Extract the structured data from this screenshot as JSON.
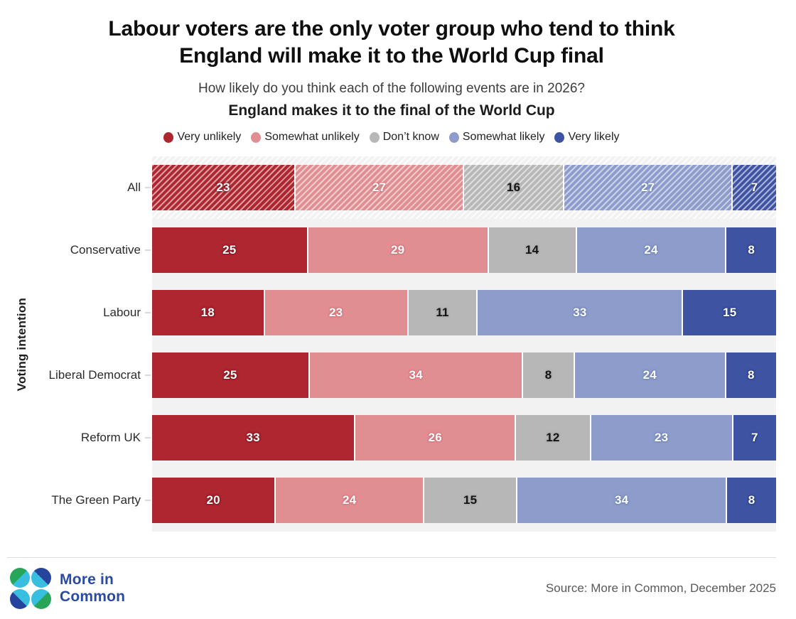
{
  "header": {
    "title_line1": "Labour voters are the only voter group who tend to think",
    "title_line2": "England will make it to the World Cup final",
    "subtitle": "How likely do you think each of the following events are in 2026?",
    "question": "England makes it to the final of the World Cup"
  },
  "chart_data": {
    "type": "bar",
    "orientation": "horizontal",
    "stacked": true,
    "unit": "percent",
    "xlim": [
      0,
      100
    ],
    "ylabel": "Voting intention",
    "legend_position": "top",
    "hatched_category": "All",
    "plot_background": "#f2f2f2",
    "categories": [
      "All",
      "Conservative",
      "Labour",
      "Liberal Democrat",
      "Reform UK",
      "The Green Party"
    ],
    "series": [
      {
        "name": "Very unlikely",
        "color": "#ae2630",
        "label_color": "#ffffff",
        "label_halo": "#7e151e",
        "values": [
          23,
          25,
          18,
          25,
          33,
          20
        ]
      },
      {
        "name": "Somewhat unlikely",
        "color": "#e18e93",
        "label_color": "#ffffff",
        "label_halo": "#cf6d74",
        "values": [
          27,
          29,
          23,
          34,
          26,
          24
        ]
      },
      {
        "name": "Don’t know",
        "color": "#b8b7b7",
        "label_color": "#141414",
        "label_halo": "#a5a4a4",
        "values": [
          16,
          14,
          11,
          8,
          12,
          15
        ]
      },
      {
        "name": "Somewhat likely",
        "color": "#8d9cca",
        "label_color": "#ffffff",
        "label_halo": "#6d80b6",
        "values": [
          27,
          24,
          33,
          24,
          23,
          34
        ]
      },
      {
        "name": "Very likely",
        "color": "#3e54a3",
        "label_color": "#ffffff",
        "label_halo": "#273a7c",
        "values": [
          7,
          8,
          15,
          8,
          7,
          8
        ]
      }
    ]
  },
  "footer": {
    "logo_text_line1": "More in",
    "logo_text_line2": "Common",
    "source": "Source: More in Common, December 2025"
  }
}
